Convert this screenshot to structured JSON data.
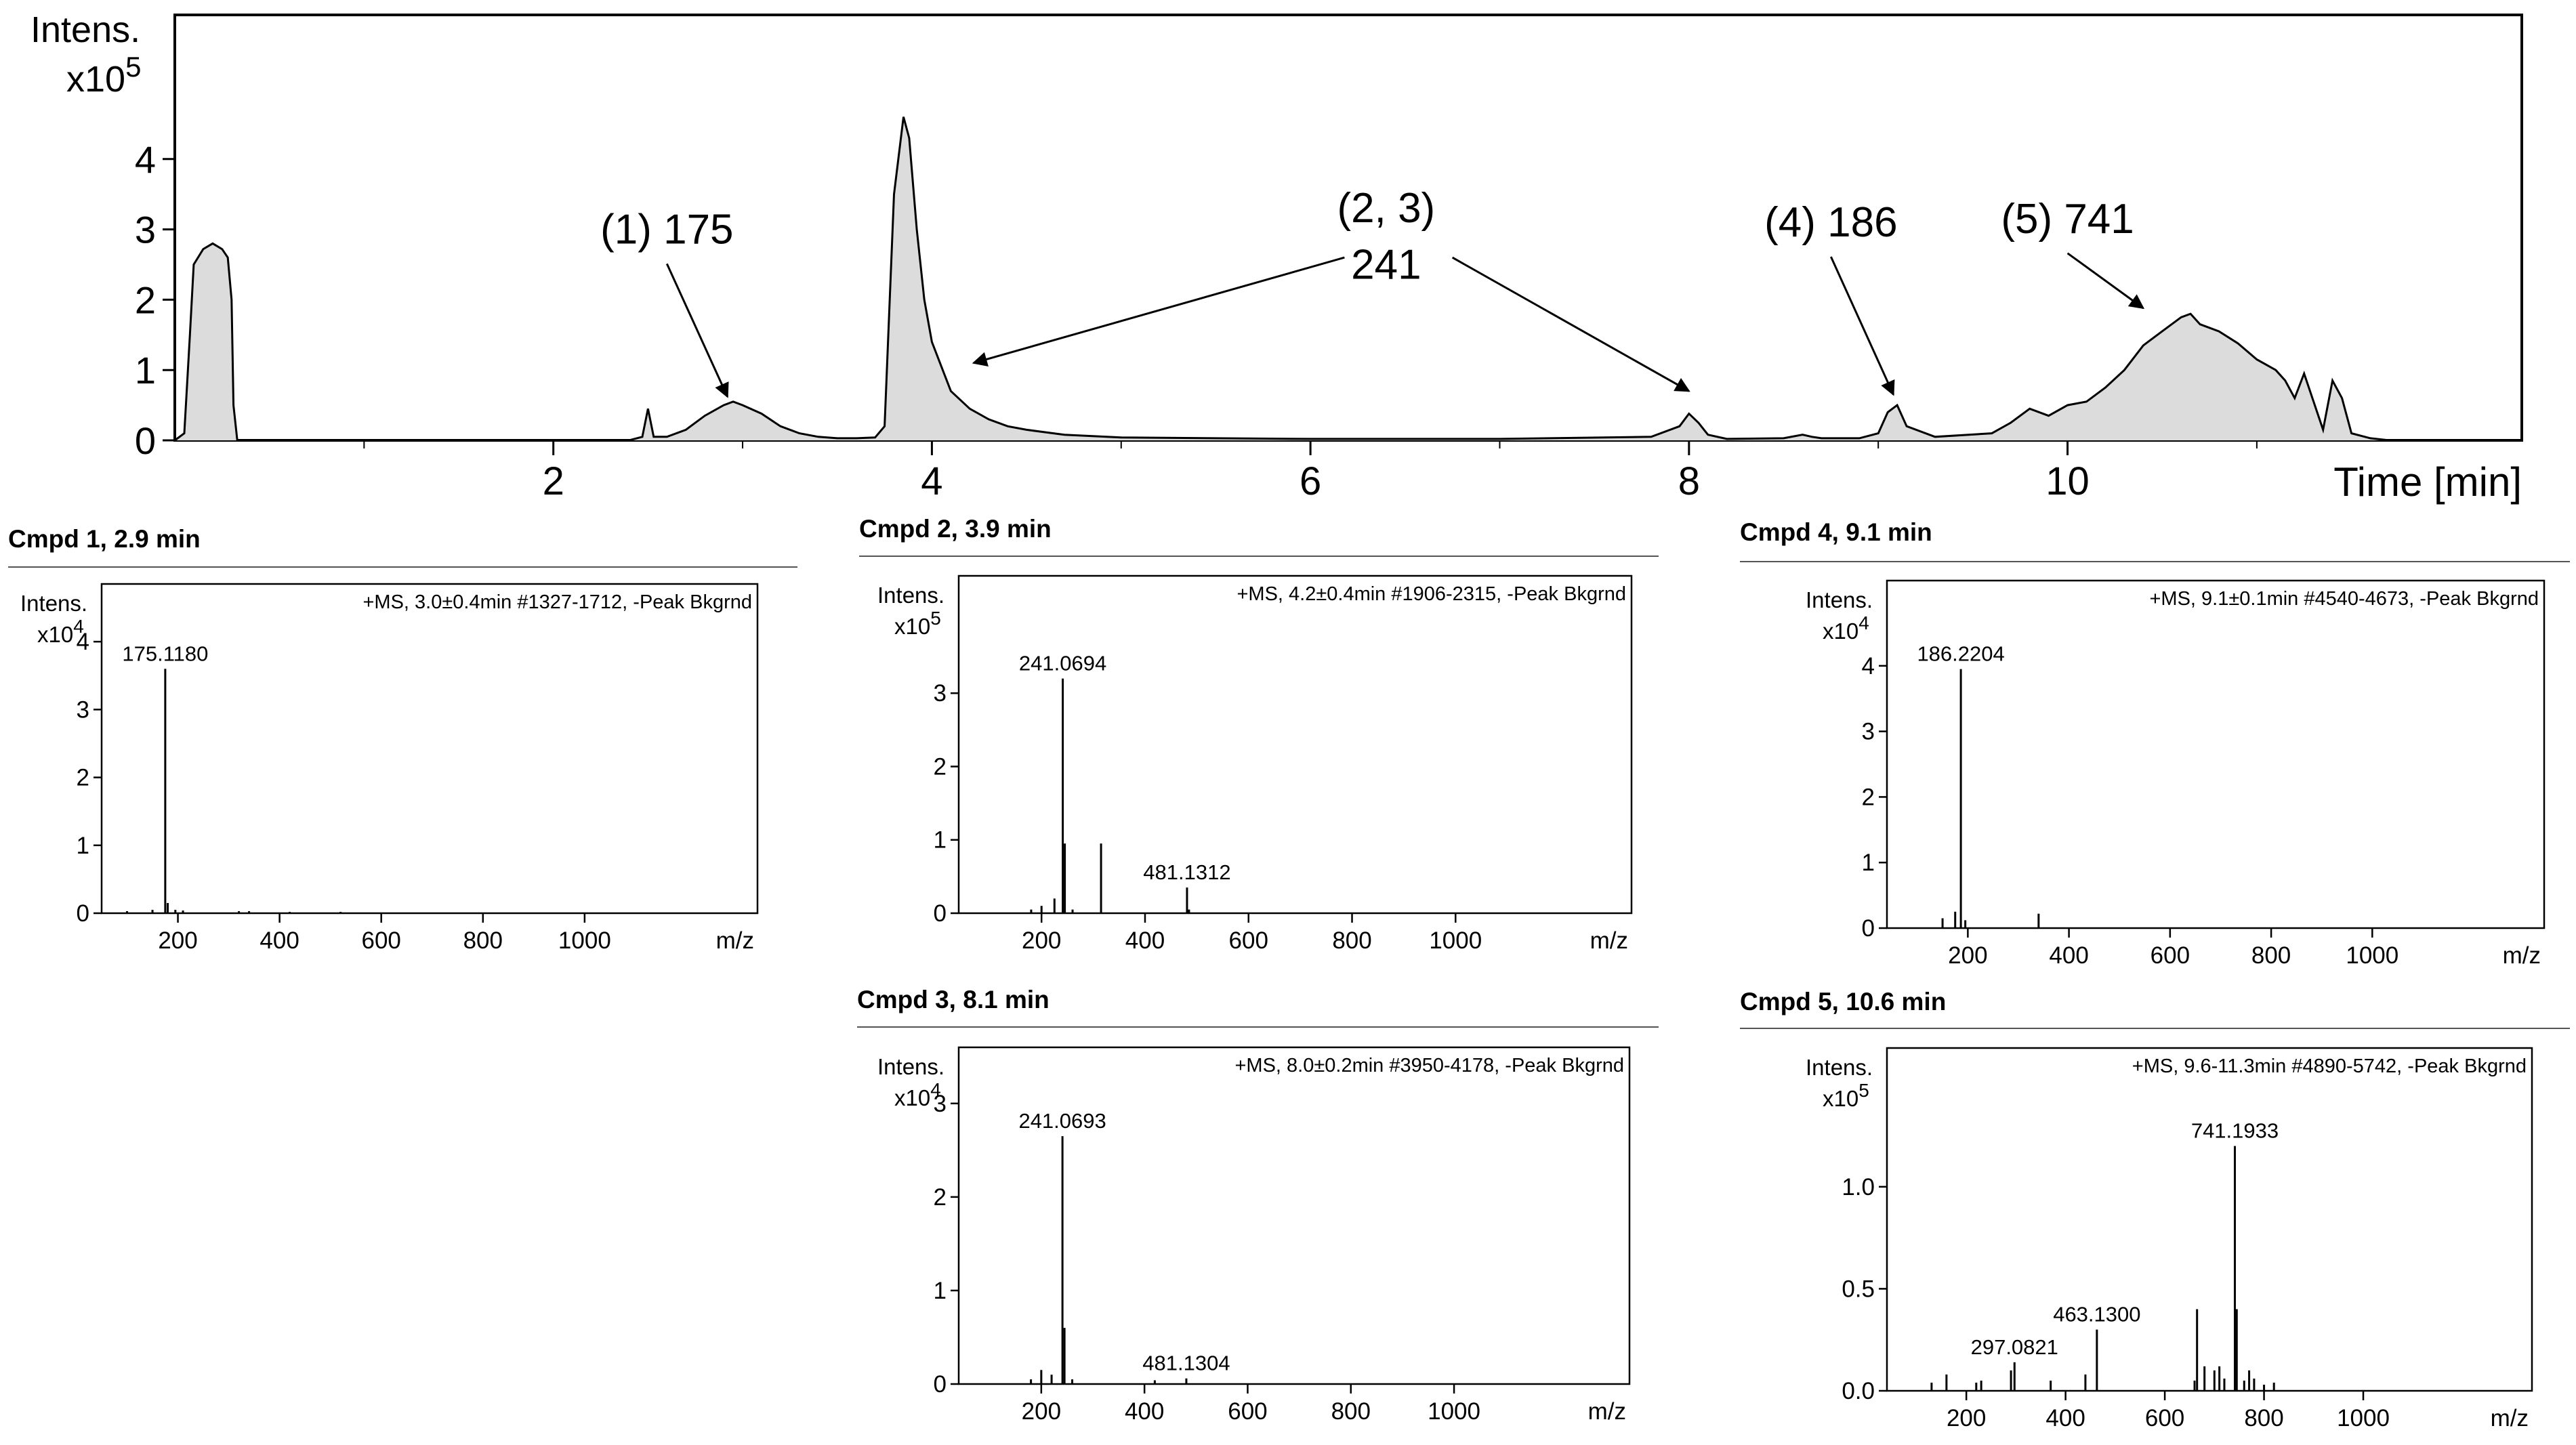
{
  "chart_data": [
    {
      "type": "area",
      "id": "chromatogram",
      "ylabel": "Intens.",
      "ymult": "x10",
      "yexp": "5",
      "xlabel": "Time [min]",
      "xlim": [
        0,
        12.4
      ],
      "ylim": [
        0,
        6.05
      ],
      "xticks": [
        2,
        4,
        6,
        8,
        10
      ],
      "yticks": [
        0,
        1,
        2,
        3,
        4
      ],
      "grid": false,
      "x": [
        0.0,
        0.05,
        0.08,
        0.1,
        0.15,
        0.2,
        0.25,
        0.28,
        0.3,
        0.31,
        0.33,
        2.4,
        2.47,
        2.5,
        2.53,
        2.6,
        2.7,
        2.8,
        2.9,
        2.95,
        3.0,
        3.1,
        3.2,
        3.3,
        3.4,
        3.5,
        3.6,
        3.7,
        3.75,
        3.8,
        3.85,
        3.88,
        3.92,
        3.96,
        4.0,
        4.1,
        4.2,
        4.3,
        4.4,
        4.5,
        4.7,
        5.0,
        5.5,
        6.0,
        7.0,
        7.8,
        7.95,
        8.0,
        8.05,
        8.1,
        8.2,
        8.5,
        8.6,
        8.65,
        8.7,
        8.9,
        9.0,
        9.05,
        9.1,
        9.15,
        9.3,
        9.6,
        9.7,
        9.8,
        9.9,
        10.0,
        10.1,
        10.2,
        10.3,
        10.4,
        10.5,
        10.6,
        10.65,
        10.7,
        10.8,
        10.9,
        11.0,
        11.1,
        11.15,
        11.2,
        11.25,
        11.3,
        11.35,
        11.4,
        11.45,
        11.5,
        11.6,
        11.7,
        12.4
      ],
      "y": [
        0.0,
        0.1,
        1.5,
        2.5,
        2.72,
        2.8,
        2.72,
        2.6,
        2.0,
        0.5,
        0.0,
        0.0,
        0.05,
        0.45,
        0.05,
        0.05,
        0.15,
        0.35,
        0.5,
        0.55,
        0.5,
        0.38,
        0.2,
        0.1,
        0.05,
        0.03,
        0.03,
        0.04,
        0.2,
        3.5,
        4.6,
        4.3,
        3.0,
        2.0,
        1.4,
        0.7,
        0.45,
        0.3,
        0.2,
        0.15,
        0.08,
        0.04,
        0.03,
        0.02,
        0.02,
        0.05,
        0.2,
        0.38,
        0.25,
        0.08,
        0.02,
        0.03,
        0.08,
        0.05,
        0.03,
        0.03,
        0.1,
        0.4,
        0.5,
        0.2,
        0.05,
        0.1,
        0.25,
        0.45,
        0.35,
        0.5,
        0.55,
        0.75,
        1.0,
        1.35,
        1.55,
        1.75,
        1.8,
        1.65,
        1.55,
        1.38,
        1.15,
        1.0,
        0.85,
        0.6,
        0.95,
        0.55,
        0.15,
        0.85,
        0.6,
        0.1,
        0.03,
        0.0,
        0.0
      ],
      "annotations": [
        {
          "text": "(1) 175",
          "tx": 2.6,
          "ty": 2.8,
          "ax": 2.92,
          "ay": 0.62
        },
        {
          "text": "(2, 3)",
          "tx": 6.4,
          "ty": 3.1
        },
        {
          "text": "241",
          "tx": 6.4,
          "ty": 2.3
        },
        {
          "text": "(4) 186",
          "tx": 8.75,
          "ty": 2.9,
          "ax": 9.08,
          "ay": 0.65
        },
        {
          "text": "(5) 741",
          "tx": 10.0,
          "ty": 2.95,
          "ax": 10.4,
          "ay": 1.88
        }
      ],
      "arrows_241": [
        {
          "fx": 6.18,
          "fy": 2.6,
          "ax": 4.22,
          "ay": 1.1
        },
        {
          "fx": 6.75,
          "fy": 2.6,
          "ax": 8.0,
          "ay": 0.7
        }
      ]
    },
    {
      "type": "bar",
      "id": "ms1",
      "title": "Cmpd 1, 2.9 min",
      "info": "+MS, 3.0±0.4min #1327-1712, -Peak Bkgrnd",
      "ylabel": "Intens.",
      "ymult": "x10",
      "yexp": "4",
      "xlabel": "m/z",
      "xlim": [
        50,
        1340
      ],
      "ylim": [
        0,
        4.85
      ],
      "xticks": [
        200,
        400,
        600,
        800,
        1000
      ],
      "yticks": [
        0,
        1,
        2,
        3,
        4
      ],
      "peaks": [
        [
          100,
          0.03
        ],
        [
          150,
          0.05
        ],
        [
          175.118,
          3.6
        ],
        [
          180,
          0.15
        ],
        [
          195,
          0.05
        ],
        [
          210,
          0.04
        ],
        [
          320,
          0.03
        ],
        [
          340,
          0.03
        ],
        [
          420,
          0.02
        ],
        [
          520,
          0.02
        ]
      ],
      "labels": [
        {
          "mz": 175.118,
          "text": "175.1180"
        }
      ]
    },
    {
      "type": "bar",
      "id": "ms2",
      "title": "Cmpd 2, 3.9 min",
      "info": "+MS, 4.2±0.4min #1906-2315, -Peak Bkgrnd",
      "ylabel": "Intens.",
      "ymult": "x10",
      "yexp": "5",
      "xlabel": "m/z",
      "xlim": [
        40,
        1340
      ],
      "ylim": [
        0,
        4.6
      ],
      "xticks": [
        200,
        400,
        600,
        800,
        1000
      ],
      "yticks": [
        0,
        1,
        2,
        3
      ],
      "peaks": [
        [
          180,
          0.05
        ],
        [
          200,
          0.1
        ],
        [
          225,
          0.2
        ],
        [
          241.0694,
          3.2
        ],
        [
          245,
          0.95
        ],
        [
          260,
          0.05
        ],
        [
          315,
          0.95
        ],
        [
          481.1312,
          0.35
        ],
        [
          485,
          0.05
        ]
      ],
      "labels": [
        {
          "mz": 241.0694,
          "text": "241.0694"
        },
        {
          "mz": 481.1312,
          "text": "481.1312"
        }
      ]
    },
    {
      "type": "bar",
      "id": "ms3",
      "title": "Cmpd 3, 8.1 min",
      "info": "+MS, 8.0±0.2min #3950-4178, -Peak Bkgrnd",
      "ylabel": "Intens.",
      "ymult": "x10",
      "yexp": "4",
      "xlabel": "m/z",
      "xlim": [
        40,
        1340
      ],
      "ylim": [
        0,
        3.6
      ],
      "xticks": [
        200,
        400,
        600,
        800,
        1000
      ],
      "yticks": [
        0,
        1,
        2,
        3
      ],
      "peaks": [
        [
          180,
          0.05
        ],
        [
          200,
          0.15
        ],
        [
          220,
          0.1
        ],
        [
          241.0693,
          2.65
        ],
        [
          245,
          0.6
        ],
        [
          260,
          0.05
        ],
        [
          420,
          0.04
        ],
        [
          481.1304,
          0.06
        ]
      ],
      "labels": [
        {
          "mz": 241.0693,
          "text": "241.0693"
        },
        {
          "mz": 481.1304,
          "text": "481.1304"
        }
      ]
    },
    {
      "type": "bar",
      "id": "ms4",
      "title": "Cmpd 4, 9.1 min",
      "info": "+MS, 9.1±0.1min #4540-4673, -Peak Bkgrnd",
      "ylabel": "Intens.",
      "ymult": "x10",
      "yexp": "4",
      "xlabel": "m/z",
      "xlim": [
        40,
        1340
      ],
      "ylim": [
        0,
        5.3
      ],
      "xticks": [
        200,
        400,
        600,
        800,
        1000
      ],
      "yticks": [
        0,
        1,
        2,
        3,
        4
      ],
      "peaks": [
        [
          150,
          0.15
        ],
        [
          175,
          0.25
        ],
        [
          186.2204,
          3.95
        ],
        [
          195,
          0.12
        ],
        [
          340,
          0.22
        ]
      ],
      "labels": [
        {
          "mz": 186.2204,
          "text": "186.2204"
        }
      ]
    },
    {
      "type": "bar",
      "id": "ms5",
      "title": "Cmpd 5, 10.6 min",
      "info": "+MS, 9.6-11.3min #4890-5742, -Peak Bkgrnd",
      "ylabel": "Intens.",
      "ymult": "x10",
      "yexp": "5",
      "xlabel": "m/z",
      "xlim": [
        40,
        1340
      ],
      "ylim": [
        0,
        1.68
      ],
      "xticks": [
        200,
        400,
        600,
        800,
        1000
      ],
      "yticks": [
        0,
        0.5,
        1.0
      ],
      "ytick_labels": [
        "0.0",
        "0.5",
        "1.0"
      ],
      "peaks": [
        [
          130,
          0.04
        ],
        [
          160,
          0.08
        ],
        [
          220,
          0.04
        ],
        [
          230,
          0.05
        ],
        [
          290,
          0.1
        ],
        [
          297.0821,
          0.14
        ],
        [
          370,
          0.05
        ],
        [
          440,
          0.08
        ],
        [
          463.13,
          0.3
        ],
        [
          660,
          0.05
        ],
        [
          665,
          0.4
        ],
        [
          680,
          0.12
        ],
        [
          700,
          0.1
        ],
        [
          710,
          0.12
        ],
        [
          720,
          0.06
        ],
        [
          741.1933,
          1.2
        ],
        [
          745,
          0.4
        ],
        [
          760,
          0.05
        ],
        [
          770,
          0.1
        ],
        [
          780,
          0.06
        ],
        [
          800,
          0.03
        ],
        [
          820,
          0.04
        ]
      ],
      "labels": [
        {
          "mz": 297.0821,
          "text": "297.0821"
        },
        {
          "mz": 463.13,
          "text": "463.1300"
        },
        {
          "mz": 741.1933,
          "text": "741.1933"
        }
      ]
    }
  ]
}
